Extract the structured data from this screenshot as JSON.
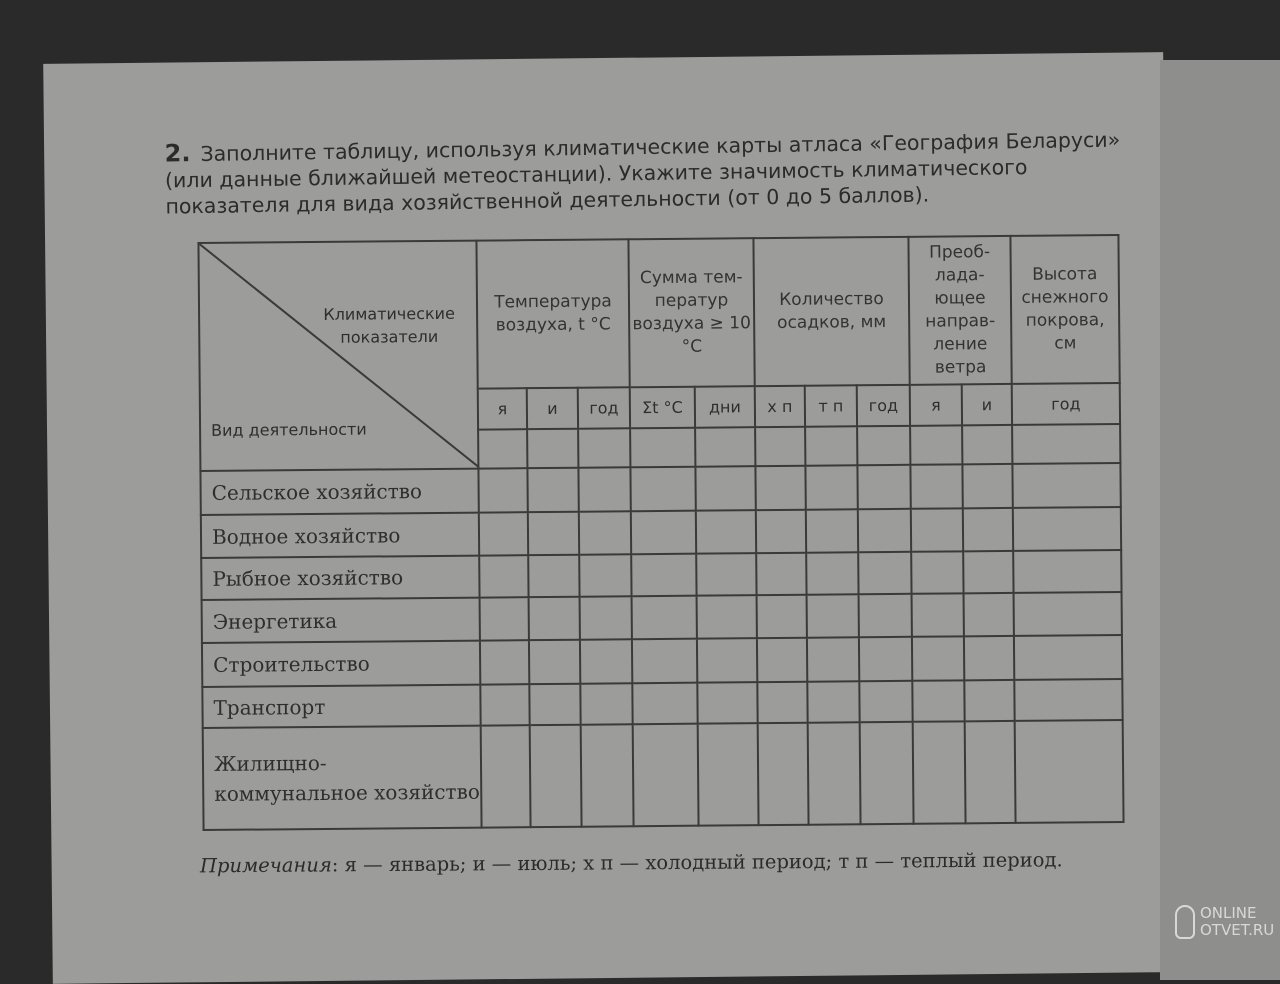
{
  "task": {
    "number": "2.",
    "text": "Заполните таблицу, используя климатические карты атласа «География Беларуси» (или данные ближайшей метеостанции). Укажите значимость климатического показателя для вида хозяйственной деятельности (от 0 до 5 баллов)."
  },
  "table": {
    "corner_top": "Климатические показатели",
    "corner_bottom": "Вид деятельности",
    "groups": [
      "Температура воздуха, t °C",
      "Сумма тем-ператур воздуха ≥ 10 °C",
      "Количество осадков, мм",
      "Преоб-лада-ющее направ-ление ветра",
      "Высота снежного покрова, см"
    ],
    "subheaders": [
      "я",
      "и",
      "год",
      "Σt °C",
      "дни",
      "х п",
      "т п",
      "год",
      "я",
      "и",
      "год"
    ],
    "rows": [
      "Сельское хозяйство",
      "Водное хозяйство",
      "Рыбное хозяйство",
      "Энергетика",
      "Строительство",
      "Транспорт",
      "Жилищно-коммунальное хозяйство"
    ]
  },
  "note": {
    "label": "Примечания",
    "text": ": я — январь; и — июль; х п — холодный период; т п — теплый период."
  },
  "watermark": "ONLINE OTVET.RU"
}
